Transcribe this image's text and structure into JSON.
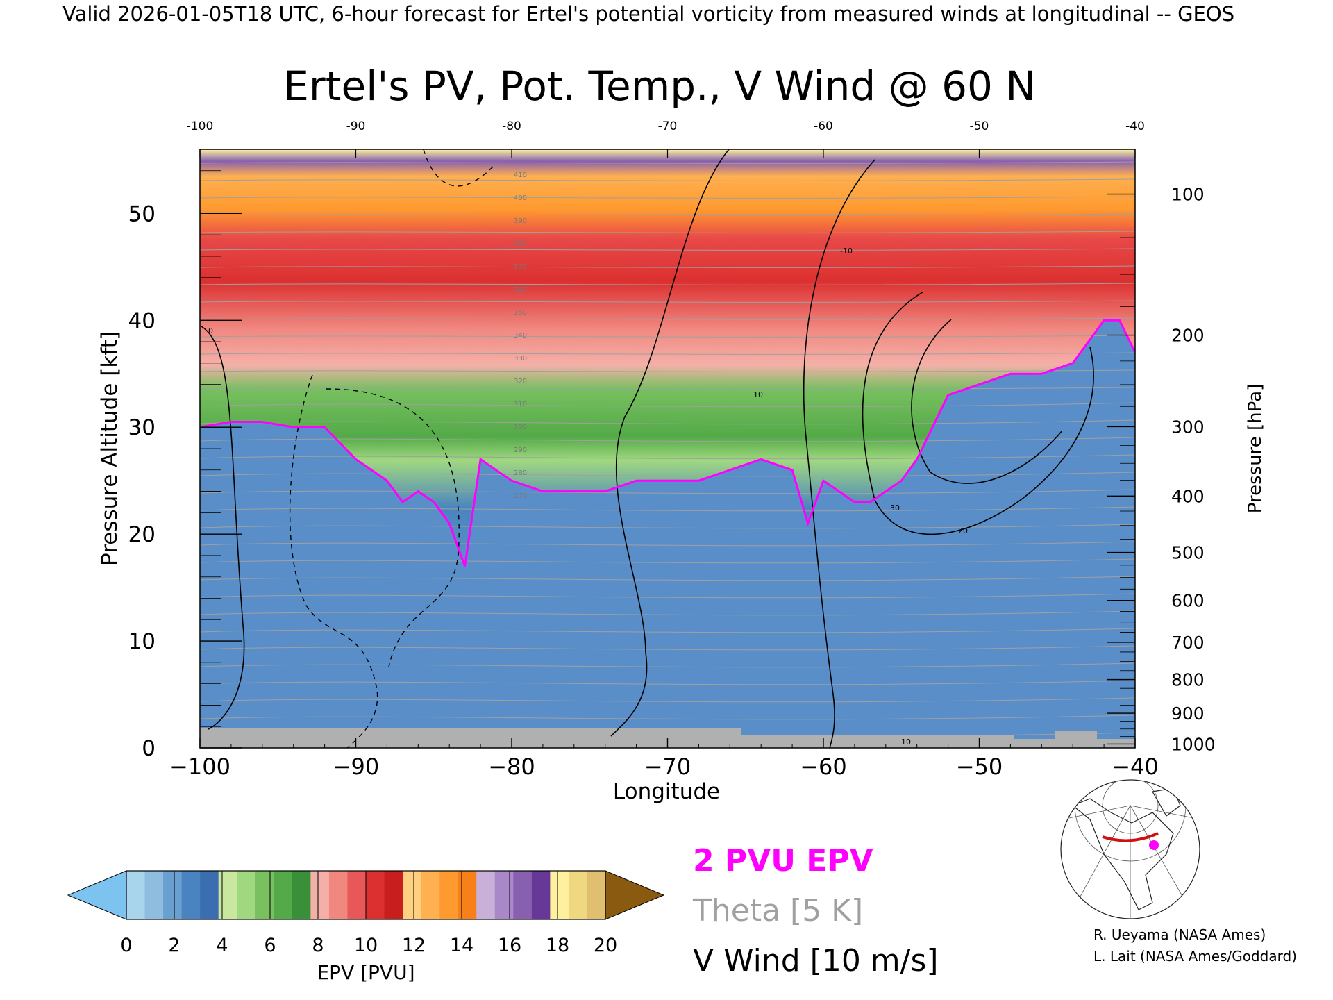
{
  "header": {
    "valid_line": "Valid 2026-01-05T18 UTC, 6-hour forecast for Ertel's potential vorticity from measured winds at longitudinal -- GEOS"
  },
  "chart_data": {
    "type": "heatmap",
    "title": "Ertel's PV, Pot. Temp., V Wind @ 60 N",
    "xlabel": "Longitude",
    "ylabel": "Pressure Altitude [kft]",
    "y2label": "Pressure [hPa]",
    "xlim": [
      -100,
      -40
    ],
    "ylim": [
      0,
      56
    ],
    "x_ticks": [
      "−100",
      "−90",
      "−80",
      "−70",
      "−60",
      "−50",
      "−40"
    ],
    "x_tick_values": [
      -100,
      -90,
      -80,
      -70,
      -60,
      -50,
      -40
    ],
    "top_ticks": [
      "-100",
      "-90",
      "-80",
      "-70",
      "-60",
      "-50",
      "-40"
    ],
    "y_ticks": [
      "0",
      "10",
      "20",
      "30",
      "40",
      "50"
    ],
    "y_tick_values": [
      0,
      10,
      20,
      30,
      40,
      50
    ],
    "pressure_ticks": [
      "100",
      "200",
      "300",
      "400",
      "500",
      "600",
      "700",
      "800",
      "900",
      "1000"
    ],
    "pressure_tick_values": [
      100,
      200,
      300,
      400,
      500,
      600,
      700,
      800,
      900,
      1000
    ],
    "tropopause_2pvu": {
      "name": "2 PVU EPV",
      "lon": [
        -100,
        -98,
        -96,
        -94,
        -92,
        -90,
        -89,
        -88,
        -87,
        -86,
        -85,
        -84,
        -83,
        -82,
        -81,
        -80,
        -78,
        -76,
        -74,
        -72,
        -70,
        -68,
        -66,
        -64,
        -62,
        -61,
        -60,
        -59,
        -58,
        -57,
        -56,
        -55,
        -54,
        -53,
        -52,
        -50,
        -48,
        -46,
        -44,
        -42,
        -41,
        -40
      ],
      "kft": [
        30,
        30.5,
        30.5,
        30,
        30,
        27,
        26,
        25,
        23,
        24,
        23,
        21,
        17,
        27,
        26,
        25,
        24,
        24,
        24,
        25,
        25,
        25,
        26,
        27,
        26,
        21,
        25,
        24,
        23,
        23,
        24,
        25,
        27,
        30,
        33,
        34,
        35,
        35,
        36,
        40,
        40,
        37
      ]
    },
    "colorbar": {
      "label": "EPV [PVU]",
      "ticks": [
        "0",
        "2",
        "4",
        "6",
        "8",
        "10",
        "12",
        "14",
        "16",
        "18",
        "20"
      ],
      "tick_values": [
        0,
        2,
        4,
        6,
        8,
        10,
        12,
        14,
        16,
        18,
        20
      ],
      "colors": [
        "#7cc4ef",
        "#a8d4ec",
        "#8ebde0",
        "#6aa0d0",
        "#4a84c0",
        "#3a6eb0",
        "#c8e8a0",
        "#a0d880",
        "#78c060",
        "#54aa48",
        "#3a9038",
        "#f4b0a8",
        "#f08880",
        "#e85858",
        "#dc3030",
        "#c81e1e",
        "#ffd080",
        "#ffb050",
        "#ff9a30",
        "#f88018",
        "#c8b0d8",
        "#a888c8",
        "#8860b0",
        "#683898",
        "#fff0a0",
        "#f0d880",
        "#e0c070",
        "#8a5a10"
      ]
    },
    "legend": [
      {
        "label": "2 PVU EPV",
        "color": "#ff00ff"
      },
      {
        "label": "Theta [5 K]",
        "color": "#a0a0a0"
      },
      {
        "label": "V Wind [10 m/s]",
        "color": "#000000"
      }
    ],
    "theta_labels": [
      "410",
      "400",
      "390",
      "380",
      "370",
      "360",
      "350",
      "340",
      "330",
      "320",
      "310",
      "300",
      "290",
      "280",
      "270"
    ],
    "wind_labels": [
      "0",
      "10",
      "-10",
      "30",
      "20",
      "10"
    ]
  },
  "credits": {
    "line1": "R. Ueyama (NASA Ames)",
    "line2": "L. Lait (NASA Ames/Goddard)"
  },
  "inset_map": {
    "marker_color": "#ff00ff",
    "section_color": "#d01010"
  }
}
